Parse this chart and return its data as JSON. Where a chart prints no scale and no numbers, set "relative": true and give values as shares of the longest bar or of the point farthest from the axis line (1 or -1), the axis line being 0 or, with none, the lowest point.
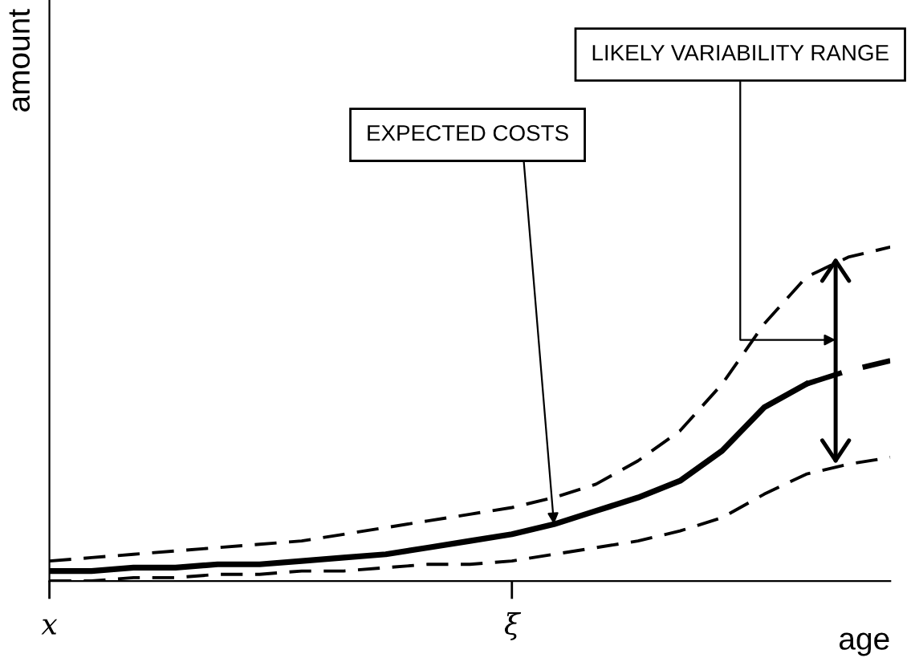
{
  "chart_data": {
    "type": "line",
    "relative": true,
    "xlabel": "age",
    "ylabel": "amount",
    "categories": [
      "x",
      null,
      null,
      null,
      null,
      null,
      null,
      null,
      null,
      null,
      null,
      "ξ",
      null,
      null,
      null,
      null,
      null,
      null,
      null,
      null,
      null
    ],
    "series": [
      {
        "color": "#000000",
        "line_style": "dashed",
        "values": [
          0.06,
          0.07,
          0.08,
          0.09,
          0.1,
          0.11,
          0.12,
          0.14,
          0.16,
          0.18,
          0.2,
          0.22,
          0.25,
          0.29,
          0.36,
          0.45,
          0.59,
          0.77,
          0.91,
          0.97,
          1.0
        ]
      },
      {
        "color": "#000000",
        "line_style": "solid",
        "values": [
          0.03,
          0.03,
          0.04,
          0.04,
          0.05,
          0.05,
          0.06,
          0.07,
          0.08,
          0.1,
          0.12,
          0.14,
          0.17,
          0.21,
          0.25,
          0.3,
          0.39,
          0.52,
          0.59,
          null,
          null
        ]
      },
      {
        "color": "#000000",
        "line_style": "dashed",
        "values": [
          null,
          null,
          null,
          null,
          null,
          null,
          null,
          null,
          null,
          null,
          null,
          null,
          null,
          null,
          null,
          null,
          null,
          null,
          0.59,
          0.63,
          0.66
        ]
      },
      {
        "color": "#000000",
        "line_style": "dashed",
        "values": [
          0,
          0,
          0.01,
          0.01,
          0.02,
          0.02,
          0.03,
          0.03,
          0.04,
          0.05,
          0.05,
          0.06,
          0.08,
          0.1,
          0.12,
          0.15,
          0.19,
          0.26,
          0.32,
          0.35,
          0.37
        ]
      }
    ],
    "annotations": [
      "EXPECTED COSTS",
      "LIKELY VARIABILITY RANGE"
    ],
    "legend": false,
    "grid": false
  }
}
